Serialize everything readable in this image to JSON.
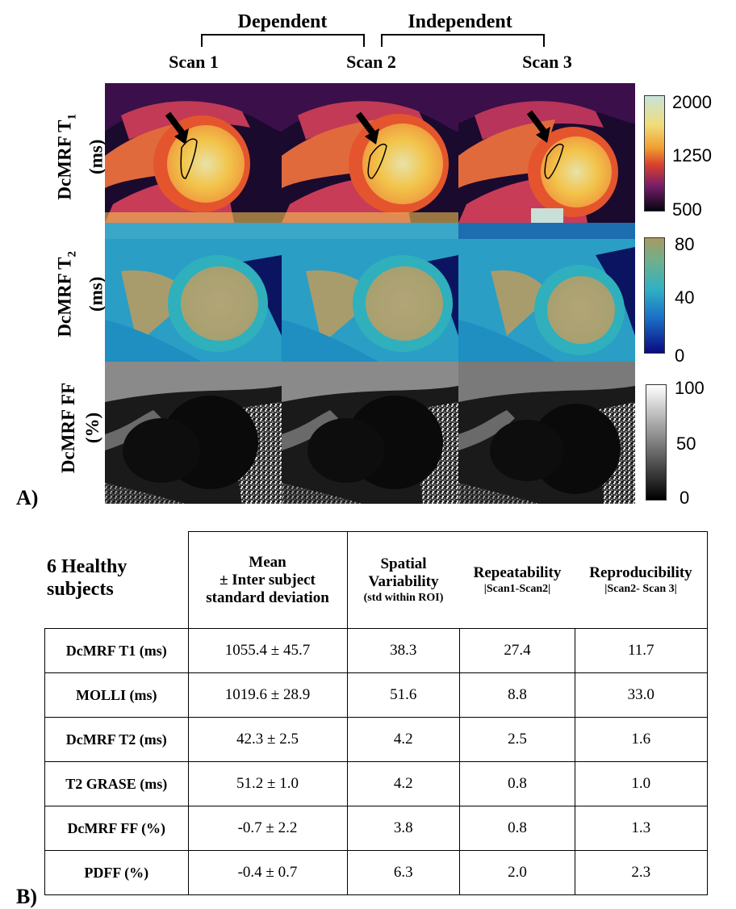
{
  "figure": {
    "part_a_label": "A)",
    "part_b_label": "B)",
    "groups": {
      "dependent": "Dependent",
      "independent": "Independent"
    },
    "scans": [
      "Scan 1",
      "Scan 2",
      "Scan 3"
    ],
    "rows": [
      {
        "label_main": "DcMRF T",
        "label_sub": "1",
        "unit": "(ms)",
        "colormap": "inferno-like",
        "ticks": [
          "2000",
          "1250",
          "500"
        ]
      },
      {
        "label_main": "DcMRF T",
        "label_sub": "2",
        "unit": "(ms)",
        "colormap": "parula-like",
        "ticks": [
          "80",
          "40",
          "0"
        ]
      },
      {
        "label_main": "DcMRF FF",
        "label_sub": "",
        "unit": "(%)",
        "colormap": "gray",
        "ticks": [
          "100",
          "50",
          "0"
        ]
      }
    ],
    "colors": {
      "t1_low": "#1a0a2e",
      "t1_mid": "#d9384a",
      "t1_high": "#f4c54a",
      "t1_top": "#c8e0d8",
      "t2_low": "#0b1a7a",
      "t2_mid": "#2aa6c4",
      "t2_high": "#a39a6a",
      "ff_low": "#000000",
      "ff_high": "#ffffff"
    }
  },
  "table": {
    "subject_label_line1": "6 Healthy",
    "subject_label_line2": "subjects",
    "headers": [
      {
        "l1": "Mean",
        "l2": "± Inter subject",
        "l3": "standard  deviation",
        "small": ""
      },
      {
        "l1": "Spatial",
        "l2": "Variability",
        "l3": "",
        "small": "(std within ROI)"
      },
      {
        "l1": "Repeatability",
        "l2": "",
        "l3": "",
        "small": "|Scan1-Scan2|"
      },
      {
        "l1": "Reproducibility",
        "l2": "",
        "l3": "",
        "small": "|Scan2- Scan 3|"
      }
    ],
    "rows": [
      {
        "name": "DcMRF T1 (ms)",
        "mean": "1055.4 ± 45.7",
        "spatial": "38.3",
        "repeat": "27.4",
        "repro": "11.7"
      },
      {
        "name": "MOLLI (ms)",
        "mean": "1019.6 ± 28.9",
        "spatial": "51.6",
        "repeat": "8.8",
        "repro": "33.0"
      },
      {
        "name": "DcMRF T2 (ms)",
        "mean": "42.3 ± 2.5",
        "spatial": "4.2",
        "repeat": "2.5",
        "repro": "1.6"
      },
      {
        "name": "T2 GRASE (ms)",
        "mean": "51.2 ± 1.0",
        "spatial": "4.2",
        "repeat": "0.8",
        "repro": "1.0"
      },
      {
        "name": "DcMRF FF (%)",
        "mean": "-0.7 ± 2.2",
        "spatial": "3.8",
        "repeat": "0.8",
        "repro": "1.3"
      },
      {
        "name": "PDFF (%)",
        "mean": "-0.4 ± 0.7",
        "spatial": "6.3",
        "repeat": "2.0",
        "repro": "2.3"
      }
    ]
  }
}
